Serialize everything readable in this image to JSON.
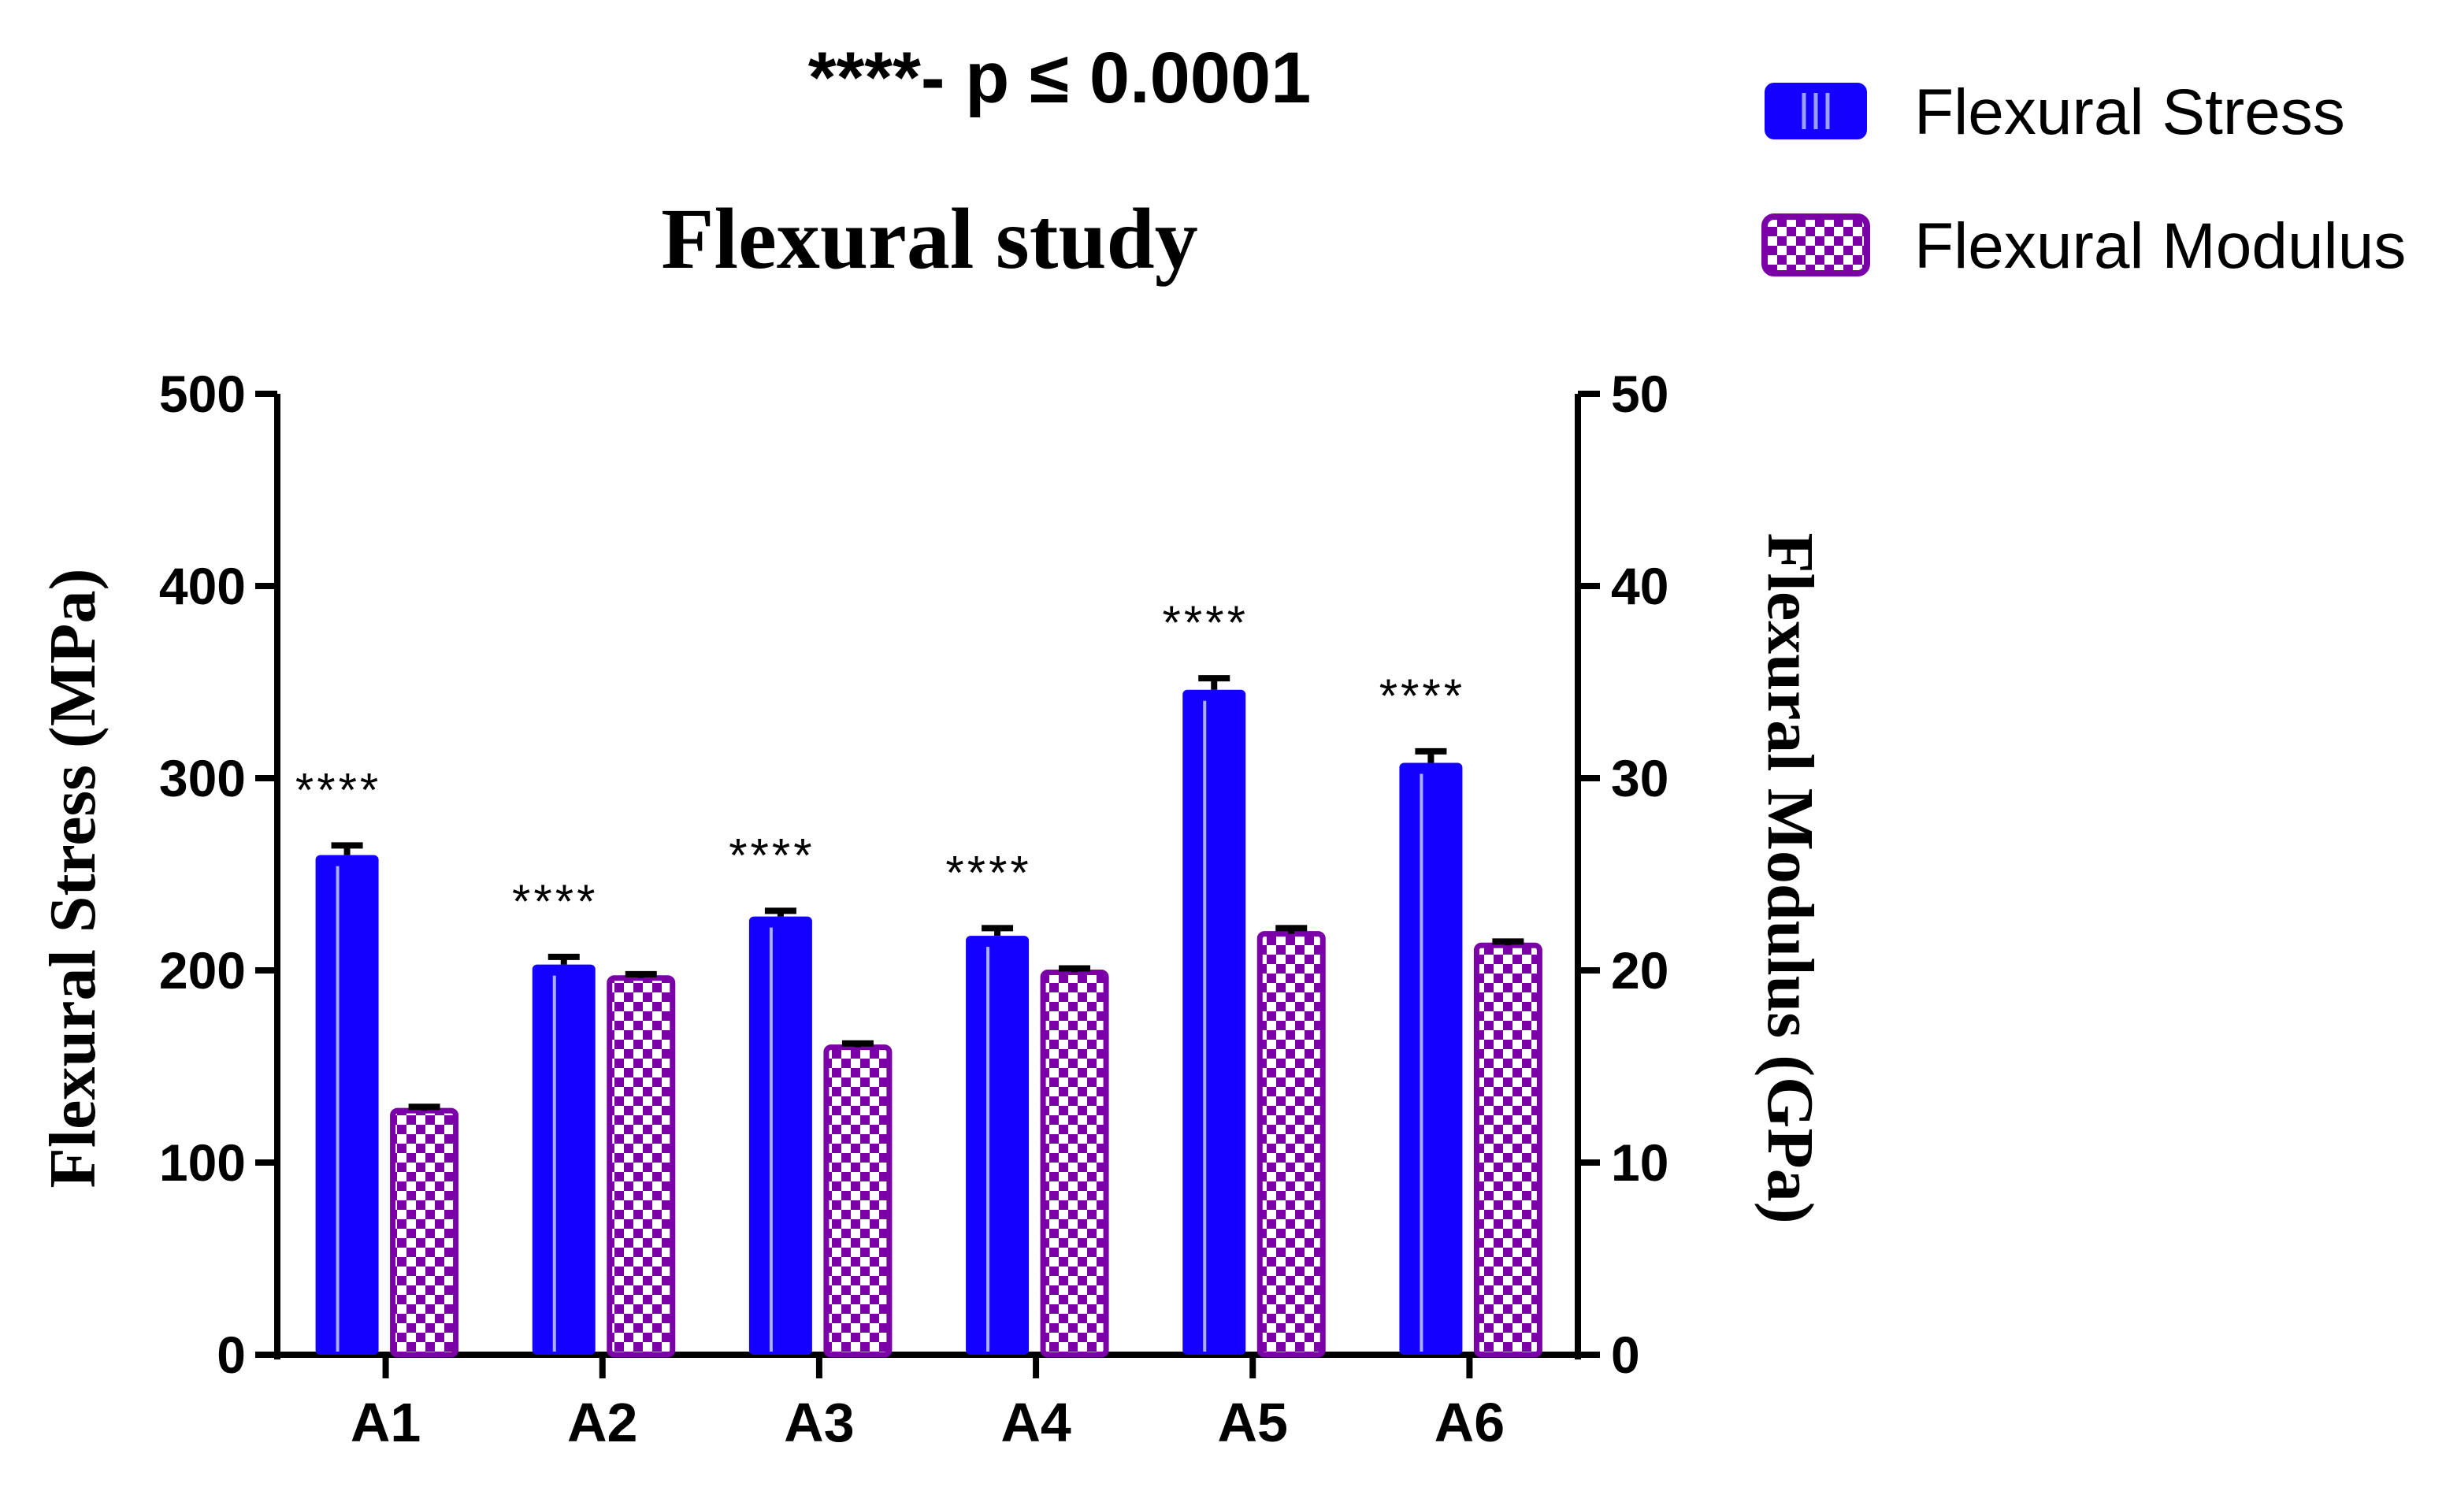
{
  "chart_data": {
    "type": "bar",
    "title": "Flexural study",
    "annotation": "****- p ≤ 0.0001",
    "categories": [
      "A1",
      "A2",
      "A3",
      "A4",
      "A5",
      "A6"
    ],
    "series": [
      {
        "name": "Flexural Stress",
        "axis": "left",
        "color": "#1400ff",
        "values": [
          260,
          203,
          228,
          218,
          346,
          308
        ],
        "errors": [
          5,
          4,
          3,
          4,
          6,
          6
        ],
        "significance": [
          "****",
          "****",
          "****",
          "****",
          "****",
          "****"
        ]
      },
      {
        "name": "Flexural Modulus",
        "axis": "right",
        "color": "#7a00a8",
        "values": [
          12.7,
          19.6,
          16.0,
          19.9,
          21.9,
          21.3
        ],
        "errors": [
          0.2,
          0.2,
          0.2,
          0.2,
          0.3,
          0.2
        ]
      }
    ],
    "y_left": {
      "label": "Flexural Stress (MPa)",
      "lim": [
        0,
        500
      ],
      "ticks": [
        0,
        100,
        200,
        300,
        400,
        500
      ]
    },
    "y_right": {
      "label": "Flexural Modulus (GPa)",
      "lim": [
        0,
        50
      ],
      "ticks": [
        0,
        10,
        20,
        30,
        40,
        50
      ]
    },
    "xlabel": "",
    "grid": false,
    "legend": "top-right"
  }
}
